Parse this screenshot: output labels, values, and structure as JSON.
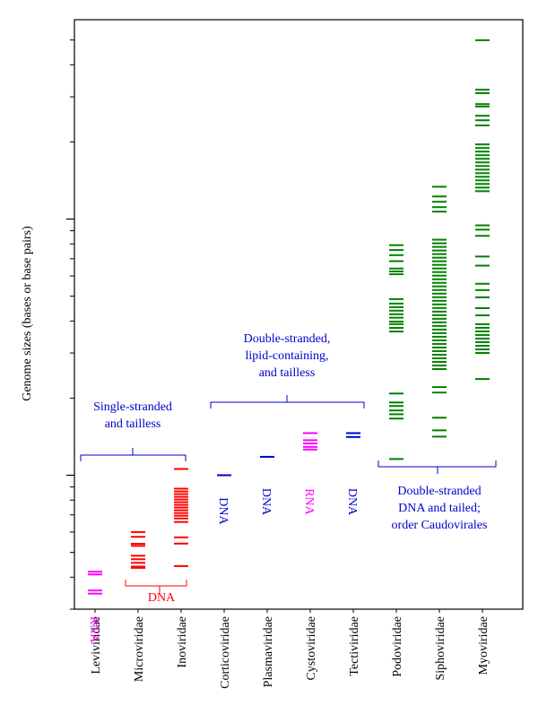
{
  "chart_data": {
    "type": "strip",
    "y_label": "Genome sizes (bases or base pairs)",
    "log_scale": true,
    "ylim": [
      3000,
      600000
    ],
    "yticks": [
      10000,
      100000
    ],
    "yminorticks": [
      3000,
      4000,
      5000,
      6000,
      7000,
      8000,
      9000,
      20000,
      30000,
      40000,
      50000,
      60000,
      70000,
      80000,
      90000,
      200000,
      300000,
      400000,
      500000
    ],
    "categories": [
      "Leviviridae",
      "Microviridae",
      "Inoviridae",
      "Corticoviridae",
      "Plasmaviridae",
      "Cystoviridae",
      "Tectiviridae",
      "Podoviridae",
      "Siphoviridae",
      "Myoviridae"
    ],
    "colors": [
      "#ff00ff",
      "#ff0000",
      "#ff0000",
      "#0000cc",
      "#0000cc",
      "#ff00ff",
      "#0000cc",
      "#008000",
      "#008000",
      "#008000"
    ],
    "nucleic_labels": [
      "RNA",
      null,
      null,
      "DNA",
      "DNA",
      "RNA",
      "DNA",
      null,
      null,
      null
    ],
    "values": [
      [
        4200,
        4100,
        3550,
        3450
      ],
      [
        6000,
        5750,
        5400,
        5300,
        4850,
        4700,
        4550,
        4400,
        4350
      ],
      [
        10580,
        8860,
        8645,
        8440,
        8235,
        8040,
        7850,
        7660,
        7480,
        7300,
        7120,
        6950,
        6780,
        6570,
        5720,
        5410,
        4420
      ],
      [
        10000
      ],
      [
        11800
      ],
      [
        14600,
        13700,
        13300,
        12900,
        12600
      ],
      [
        14600,
        14100
      ],
      [
        79100,
        75700,
        72300,
        68500,
        64100,
        62450,
        60900,
        48700,
        46800,
        45300,
        43900,
        42500,
        41200,
        39800,
        38900,
        37600,
        36400,
        20840,
        19230,
        18630,
        17900,
        17300,
        16640,
        11570
      ],
      [
        133700,
        122500,
        116800,
        111300,
        106900,
        83060,
        80420,
        77860,
        75380,
        72990,
        70670,
        68420,
        66250,
        64140,
        62100,
        60130,
        58220,
        56370,
        54580,
        52840,
        51160,
        49540,
        47960,
        46440,
        44960,
        43530,
        42150,
        40810,
        39510,
        38260,
        37040,
        35860,
        34720,
        33620,
        32550,
        31520,
        30510,
        29540,
        28610,
        27700,
        26820,
        25960,
        22080,
        21030,
        16770,
        14970,
        14150
      ],
      [
        499000,
        319900,
        310000,
        281000,
        275000,
        253000,
        243000,
        232000,
        195600,
        189400,
        183400,
        177500,
        171900,
        166400,
        161100,
        156000,
        151000,
        146200,
        141600,
        137100,
        132700,
        128500,
        94500,
        90900,
        86000,
        71400,
        65800,
        55900,
        52800,
        49500,
        44900,
        42100,
        38870,
        37630,
        36440,
        35280,
        34160,
        33070,
        32020,
        31000,
        30010,
        23740
      ]
    ],
    "annotations": [
      {
        "lines": [
          "Single-stranded",
          "and tailless"
        ]
      },
      {
        "lines": [
          "Double-stranded,",
          "lipid-containing,",
          "and tailless"
        ]
      },
      {
        "lines": [
          "Double-stranded",
          "DNA and tailed;",
          "order Caudovirales"
        ]
      },
      {
        "lines": [
          "DNA"
        ]
      }
    ]
  }
}
